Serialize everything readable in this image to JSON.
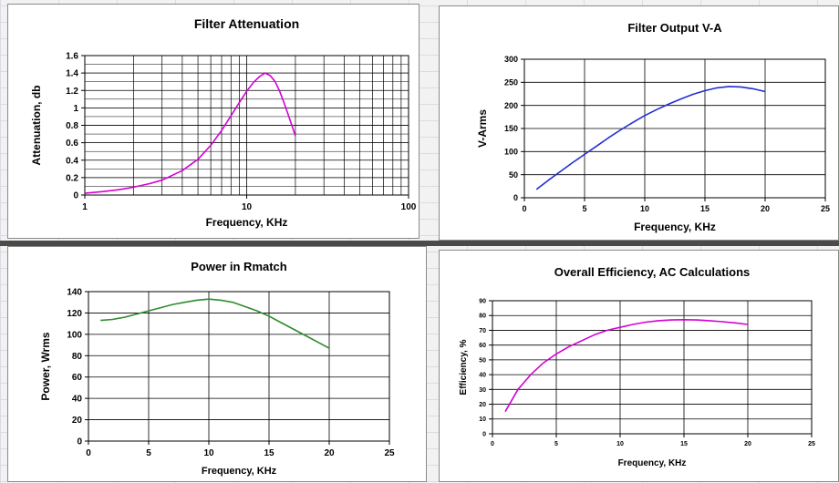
{
  "charts": [
    {
      "type": "line",
      "title": "Filter Attenuation",
      "xlabel": "Frequency, KHz",
      "ylabel": "Attenuation, db",
      "xscale": "log",
      "xlim": [
        1,
        100
      ],
      "ylim": [
        0,
        1.6
      ],
      "xticks": [
        1,
        10,
        100
      ],
      "xtick_labels": [
        "1",
        "10",
        "100"
      ],
      "yticks": [
        0,
        0.2,
        0.4,
        0.6,
        0.8,
        1,
        1.2,
        1.4,
        1.6
      ],
      "ytick_labels": [
        "0",
        "0.2",
        "0.4",
        "0.6",
        "0.8",
        "1",
        "1.2",
        "1.4",
        "1.6"
      ],
      "grid": true,
      "minor_grid": true,
      "color": "#d400d4",
      "x": [
        1,
        1.3,
        1.6,
        2,
        2.5,
        3,
        4,
        5,
        6,
        7,
        8,
        9,
        10,
        11,
        12,
        13,
        14,
        15,
        16,
        17,
        18,
        19,
        20
      ],
      "y": [
        0.02,
        0.04,
        0.06,
        0.09,
        0.13,
        0.17,
        0.28,
        0.41,
        0.57,
        0.74,
        0.91,
        1.06,
        1.19,
        1.29,
        1.36,
        1.4,
        1.37,
        1.3,
        1.19,
        1.06,
        0.93,
        0.8,
        0.68
      ]
    },
    {
      "type": "line",
      "title": "Filter Output V-A",
      "xlabel": "Frequency, KHz",
      "ylabel": "V-Arms",
      "xlim": [
        0,
        25
      ],
      "ylim": [
        0,
        300
      ],
      "xticks": [
        0,
        5,
        10,
        15,
        20,
        25
      ],
      "xtick_labels": [
        "0",
        "5",
        "10",
        "15",
        "20",
        "25"
      ],
      "yticks": [
        0,
        50,
        100,
        150,
        200,
        250,
        300
      ],
      "ytick_labels": [
        "0",
        "50",
        "100",
        "150",
        "200",
        "250",
        "300"
      ],
      "grid": true,
      "color": "#1f2fd0",
      "x": [
        1,
        2,
        3,
        4,
        5,
        6,
        7,
        8,
        9,
        10,
        11,
        12,
        13,
        14,
        15,
        16,
        17,
        18,
        19,
        20
      ],
      "y": [
        18,
        38,
        57,
        76,
        94,
        112,
        130,
        147,
        163,
        178,
        191,
        203,
        214,
        224,
        232,
        238,
        241,
        240,
        236,
        230
      ]
    },
    {
      "type": "line",
      "title": "Power in Rmatch",
      "xlabel": "Frequency, KHz",
      "ylabel": "Power, Wrms",
      "xlim": [
        0,
        25
      ],
      "ylim": [
        0,
        140
      ],
      "xticks": [
        0,
        5,
        10,
        15,
        20,
        25
      ],
      "xtick_labels": [
        "0",
        "5",
        "10",
        "15",
        "20",
        "25"
      ],
      "yticks": [
        0,
        20,
        40,
        60,
        80,
        100,
        120,
        140
      ],
      "ytick_labels": [
        "0",
        "20",
        "40",
        "60",
        "80",
        "100",
        "120",
        "140"
      ],
      "grid": true,
      "color": "#2e8b2e",
      "x": [
        1,
        2,
        3,
        4,
        5,
        6,
        7,
        8,
        9,
        10,
        11,
        12,
        13,
        14,
        15,
        16,
        17,
        18,
        19,
        20
      ],
      "y": [
        113,
        114,
        116,
        119,
        122,
        125,
        128,
        130,
        132,
        133,
        132,
        130,
        126,
        122,
        117,
        111,
        105,
        99,
        93,
        87
      ]
    },
    {
      "type": "line",
      "title": "Overall Efficiency, AC Calculations",
      "xlabel": "Frequency, KHz",
      "ylabel": "Efficiency, %",
      "xlim": [
        0,
        25
      ],
      "ylim": [
        0,
        90
      ],
      "xticks": [
        0,
        5,
        10,
        15,
        20,
        25
      ],
      "xtick_labels": [
        "0",
        "5",
        "10",
        "15",
        "20",
        "25"
      ],
      "yticks": [
        0,
        10,
        20,
        30,
        40,
        50,
        60,
        70,
        80,
        90
      ],
      "ytick_labels": [
        "0",
        "10",
        "20",
        "30",
        "40",
        "50",
        "60",
        "70",
        "80",
        "90"
      ],
      "grid": true,
      "color": "#d400d4",
      "x": [
        1,
        2,
        3,
        4,
        5,
        6,
        7,
        8,
        9,
        10,
        11,
        12,
        13,
        14,
        15,
        16,
        17,
        18,
        19,
        20
      ],
      "y": [
        15,
        30,
        40,
        48,
        54,
        59,
        63,
        67,
        70,
        72,
        74,
        75.5,
        76.5,
        77,
        77.2,
        77,
        76.5,
        75.8,
        75,
        74
      ]
    }
  ]
}
